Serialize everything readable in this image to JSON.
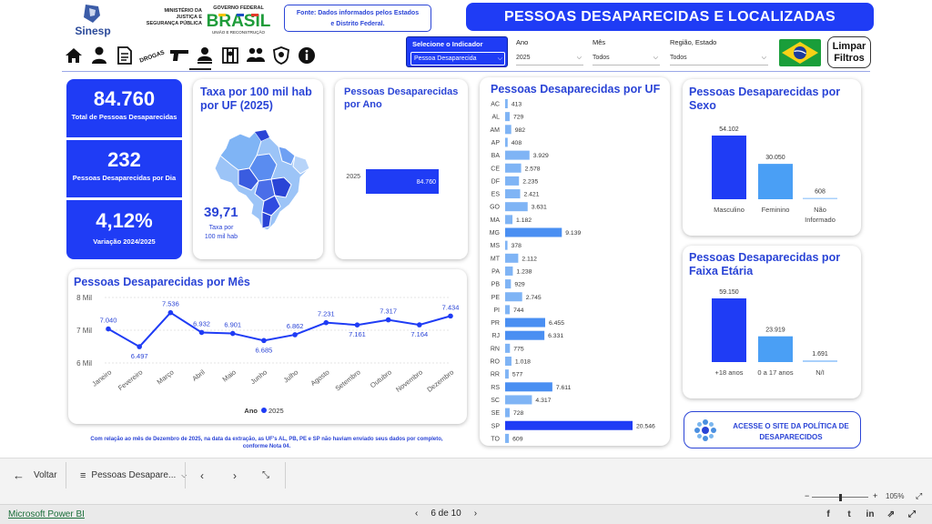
{
  "header": {
    "title": "PESSOAS DESAPARECIDAS E LOCALIZADAS",
    "source_line1": "Fonte: Dados informados pelos Estados",
    "source_line2": "e Distrito Federal.",
    "sinesp_label": "Sinesp",
    "ministry_line1": "MINISTÉRIO DA",
    "ministry_line2": "JUSTIÇA E",
    "ministry_line3": "SEGURANÇA PÚBLICA",
    "gov_line1": "GOVERNO FEDERAL",
    "gov_word": "BRASIL",
    "gov_line3": "UNIÃO E RECONSTRUÇÃO"
  },
  "nav": {
    "drogas_label": "DROGAS",
    "icons": [
      "home-icon",
      "person-icon",
      "document-icon",
      "drugs-icon",
      "gun-icon",
      "missing-person-icon",
      "prison-icon",
      "group-icon",
      "shield-icon",
      "info-icon"
    ]
  },
  "filters": {
    "indicator_label": "Selecione o Indicador",
    "indicator_value": "Pessoa Desaparecida",
    "ano_label": "Ano",
    "ano_value": "2025",
    "mes_label": "Mês",
    "mes_value": "Todos",
    "regiao_label": "Região, Estado",
    "regiao_value": "Todos",
    "limpar_line1": "Limpar",
    "limpar_line2": "Filtros"
  },
  "kpis": {
    "total_value": "84.760",
    "total_label": "Total de Pessoas Desaparecidas",
    "dia_value": "232",
    "dia_label": "Pessoas Desaparecidas por Dia",
    "var_value": "4,12%",
    "var_label": "Variação 2024/2025"
  },
  "taxa": {
    "title": "Taxa por 100 mil hab por UF (2025)",
    "value": "39,71",
    "value_label1": "Taxa por",
    "value_label2": "100 mil hab"
  },
  "por_ano": {
    "title": "Pessoas Desaparecidas por Ano",
    "chart_data": {
      "type": "bar",
      "orientation": "horizontal",
      "categories": [
        "2025"
      ],
      "values": [
        84760
      ],
      "value_labels": [
        "84.760"
      ]
    }
  },
  "por_uf": {
    "title": "Pessoas Desaparecidas por UF",
    "chart_data": {
      "type": "bar",
      "orientation": "horizontal",
      "categories": [
        "AC",
        "AL",
        "AM",
        "AP",
        "BA",
        "CE",
        "DF",
        "ES",
        "GO",
        "MA",
        "MG",
        "MS",
        "MT",
        "PA",
        "PB",
        "PE",
        "PI",
        "PR",
        "RJ",
        "RN",
        "RO",
        "RR",
        "RS",
        "SC",
        "SE",
        "SP",
        "TO"
      ],
      "values": [
        413,
        729,
        982,
        408,
        3929,
        2578,
        2235,
        2421,
        3631,
        1182,
        9139,
        378,
        2112,
        1238,
        929,
        2745,
        744,
        6455,
        6331,
        775,
        1018,
        577,
        7611,
        4317,
        728,
        20546,
        609
      ],
      "value_labels": [
        "413",
        "729",
        "982",
        "408",
        "3.929",
        "2.578",
        "2.235",
        "2.421",
        "3.631",
        "1.182",
        "9.139",
        "378",
        "2.112",
        "1.238",
        "929",
        "2.745",
        "744",
        "6.455",
        "6.331",
        "775",
        "1.018",
        "577",
        "7.611",
        "4.317",
        "728",
        "20.546",
        "609"
      ]
    }
  },
  "por_mes": {
    "title": "Pessoas Desaparecidas por Mês",
    "chart_data": {
      "type": "line",
      "categories": [
        "Janeiro",
        "Fevereiro",
        "Março",
        "Abril",
        "Maio",
        "Junho",
        "Julho",
        "Agosto",
        "Setembro",
        "Outubro",
        "Novembro",
        "Dezembro"
      ],
      "values": [
        7040,
        6497,
        7536,
        6932,
        6901,
        6685,
        6862,
        7231,
        7161,
        7317,
        7164,
        7434
      ],
      "value_labels": [
        "7.040",
        "6.497",
        "7.536",
        "6.932",
        "6.901",
        "6.685",
        "6.862",
        "7.231",
        "7.161",
        "7.317",
        "7.164",
        "7.434"
      ],
      "yticks": [
        "8 Mil",
        "7 Mil",
        "6 Mil"
      ],
      "ylim": [
        6000,
        8000
      ],
      "legend_title": "Ano",
      "legend_series": "2025",
      "legend_position": "bottom-center"
    }
  },
  "por_sexo": {
    "title": "Pessoas Desaparecidas por Sexo",
    "chart_data": {
      "type": "bar",
      "categories": [
        "Masculino",
        "Feminino",
        "Não Informado"
      ],
      "category_lines": [
        [
          "Masculino"
        ],
        [
          "Feminino"
        ],
        [
          "Não",
          "Informado"
        ]
      ],
      "values": [
        54102,
        30050,
        608
      ],
      "value_labels": [
        "54.102",
        "30.050",
        "608"
      ]
    }
  },
  "por_faixa": {
    "title": "Pessoas Desaparecidas por Faixa Etária",
    "chart_data": {
      "type": "bar",
      "categories": [
        "+18 anos",
        "0 a 17 anos",
        "N/I"
      ],
      "values": [
        59150,
        23919,
        1691
      ],
      "value_labels": [
        "59.150",
        "23.919",
        "1.691"
      ]
    }
  },
  "footnote": "Com relação ao mês de Dezembro de 2025, na data da extração, as UF's AL, PB, PE e SP não haviam enviado seus dados por completo, conforme Nota 04.",
  "acesse": "ACESSE O SITE DA POLÍTICA DE DESAPARECIDOS",
  "bottombar": {
    "back_label": "Voltar",
    "pages_label": "Pessoas Desapare...",
    "zoom": "105%"
  },
  "footer": {
    "brand": "Microsoft Power BI",
    "page": "6 de 10"
  },
  "colors": {
    "primary": "#1f3cf5",
    "light": "#7fb4f5",
    "map_light": "#9cc4f7",
    "map_dark": "#2a44d6"
  }
}
